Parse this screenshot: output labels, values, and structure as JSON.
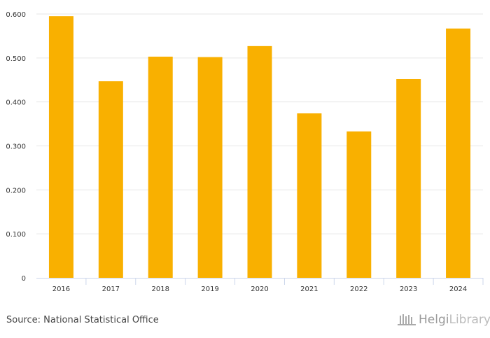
{
  "chart_data": {
    "type": "bar",
    "categories": [
      "2016",
      "2017",
      "2018",
      "2019",
      "2020",
      "2021",
      "2022",
      "2023",
      "2024"
    ],
    "values": [
      0.595,
      0.447,
      0.503,
      0.502,
      0.527,
      0.374,
      0.333,
      0.452,
      0.567
    ],
    "yticks": [
      "0",
      "0.100",
      "0.200",
      "0.300",
      "0.400",
      "0.500",
      "0.600"
    ],
    "ylim": [
      0,
      0.6
    ],
    "color": "#F9B000",
    "grid": true,
    "title": "",
    "xlabel": "",
    "ylabel": ""
  },
  "footer": {
    "source": "Source: National Statistical Office",
    "logo_helgi": "Helgi",
    "logo_library": "Library."
  }
}
